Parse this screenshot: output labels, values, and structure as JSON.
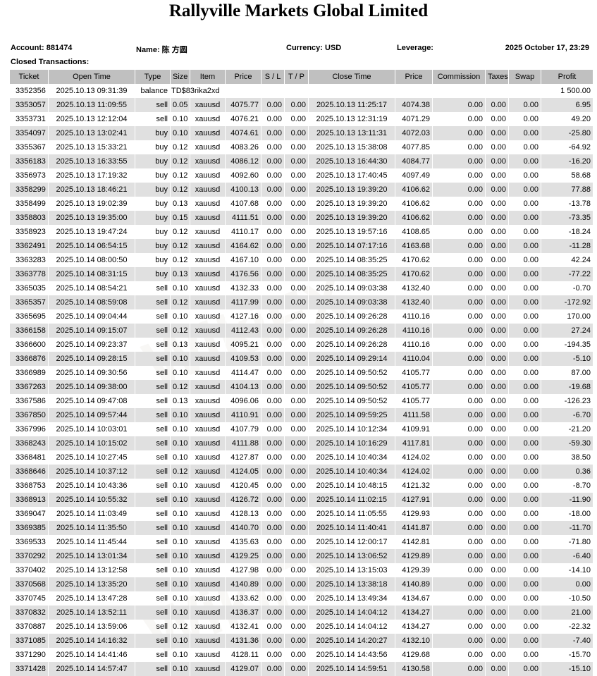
{
  "title": "Rallyville Markets Global Limited",
  "info": {
    "account": "Account: 881474",
    "name": "Name: 陈 方圆",
    "currency": "Currency: USD",
    "leverage": "Leverage:",
    "datetime": "2025 October 17, 23:29"
  },
  "section_label": "Closed Transactions:",
  "columns": [
    "Ticket",
    "Open Time",
    "Type",
    "Size",
    "Item",
    "Price",
    "S / L",
    "T / P",
    "Close Time",
    "Price",
    "Commission",
    "Taxes",
    "Swap",
    "Profit"
  ],
  "balance_row": {
    "ticket": "3352356",
    "open_time": "2025.10.13 09:31:39",
    "type": "balance",
    "comment": "TD$83rika2xd",
    "profit": "1 500.00"
  },
  "trades": [
    [
      "3353057",
      "2025.10.13 11:09:55",
      "sell",
      "0.05",
      "xauusd",
      "4075.77",
      "0.00",
      "0.00",
      "2025.10.13 11:25:17",
      "4074.38",
      "0.00",
      "0.00",
      "0.00",
      "6.95"
    ],
    [
      "3353731",
      "2025.10.13 12:12:04",
      "sell",
      "0.10",
      "xauusd",
      "4076.21",
      "0.00",
      "0.00",
      "2025.10.13 12:31:19",
      "4071.29",
      "0.00",
      "0.00",
      "0.00",
      "49.20"
    ],
    [
      "3354097",
      "2025.10.13 13:02:41",
      "buy",
      "0.10",
      "xauusd",
      "4074.61",
      "0.00",
      "0.00",
      "2025.10.13 13:11:31",
      "4072.03",
      "0.00",
      "0.00",
      "0.00",
      "-25.80"
    ],
    [
      "3355367",
      "2025.10.13 15:33:21",
      "buy",
      "0.12",
      "xauusd",
      "4083.26",
      "0.00",
      "0.00",
      "2025.10.13 15:38:08",
      "4077.85",
      "0.00",
      "0.00",
      "0.00",
      "-64.92"
    ],
    [
      "3356183",
      "2025.10.13 16:33:55",
      "buy",
      "0.12",
      "xauusd",
      "4086.12",
      "0.00",
      "0.00",
      "2025.10.13 16:44:30",
      "4084.77",
      "0.00",
      "0.00",
      "0.00",
      "-16.20"
    ],
    [
      "3356973",
      "2025.10.13 17:19:32",
      "buy",
      "0.12",
      "xauusd",
      "4092.60",
      "0.00",
      "0.00",
      "2025.10.13 17:40:45",
      "4097.49",
      "0.00",
      "0.00",
      "0.00",
      "58.68"
    ],
    [
      "3358299",
      "2025.10.13 18:46:21",
      "buy",
      "0.12",
      "xauusd",
      "4100.13",
      "0.00",
      "0.00",
      "2025.10.13 19:39:20",
      "4106.62",
      "0.00",
      "0.00",
      "0.00",
      "77.88"
    ],
    [
      "3358499",
      "2025.10.13 19:02:39",
      "buy",
      "0.13",
      "xauusd",
      "4107.68",
      "0.00",
      "0.00",
      "2025.10.13 19:39:20",
      "4106.62",
      "0.00",
      "0.00",
      "0.00",
      "-13.78"
    ],
    [
      "3358803",
      "2025.10.13 19:35:00",
      "buy",
      "0.15",
      "xauusd",
      "4111.51",
      "0.00",
      "0.00",
      "2025.10.13 19:39:20",
      "4106.62",
      "0.00",
      "0.00",
      "0.00",
      "-73.35"
    ],
    [
      "3358923",
      "2025.10.13 19:47:24",
      "buy",
      "0.12",
      "xauusd",
      "4110.17",
      "0.00",
      "0.00",
      "2025.10.13 19:57:16",
      "4108.65",
      "0.00",
      "0.00",
      "0.00",
      "-18.24"
    ],
    [
      "3362491",
      "2025.10.14 06:54:15",
      "buy",
      "0.12",
      "xauusd",
      "4164.62",
      "0.00",
      "0.00",
      "2025.10.14 07:17:16",
      "4163.68",
      "0.00",
      "0.00",
      "0.00",
      "-11.28"
    ],
    [
      "3363283",
      "2025.10.14 08:00:50",
      "buy",
      "0.12",
      "xauusd",
      "4167.10",
      "0.00",
      "0.00",
      "2025.10.14 08:35:25",
      "4170.62",
      "0.00",
      "0.00",
      "0.00",
      "42.24"
    ],
    [
      "3363778",
      "2025.10.14 08:31:15",
      "buy",
      "0.13",
      "xauusd",
      "4176.56",
      "0.00",
      "0.00",
      "2025.10.14 08:35:25",
      "4170.62",
      "0.00",
      "0.00",
      "0.00",
      "-77.22"
    ],
    [
      "3365035",
      "2025.10.14 08:54:21",
      "sell",
      "0.10",
      "xauusd",
      "4132.33",
      "0.00",
      "0.00",
      "2025.10.14 09:03:38",
      "4132.40",
      "0.00",
      "0.00",
      "0.00",
      "-0.70"
    ],
    [
      "3365357",
      "2025.10.14 08:59:08",
      "sell",
      "0.12",
      "xauusd",
      "4117.99",
      "0.00",
      "0.00",
      "2025.10.14 09:03:38",
      "4132.40",
      "0.00",
      "0.00",
      "0.00",
      "-172.92"
    ],
    [
      "3365695",
      "2025.10.14 09:04:44",
      "sell",
      "0.10",
      "xauusd",
      "4127.16",
      "0.00",
      "0.00",
      "2025.10.14 09:26:28",
      "4110.16",
      "0.00",
      "0.00",
      "0.00",
      "170.00"
    ],
    [
      "3366158",
      "2025.10.14 09:15:07",
      "sell",
      "0.12",
      "xauusd",
      "4112.43",
      "0.00",
      "0.00",
      "2025.10.14 09:26:28",
      "4110.16",
      "0.00",
      "0.00",
      "0.00",
      "27.24"
    ],
    [
      "3366600",
      "2025.10.14 09:23:37",
      "sell",
      "0.13",
      "xauusd",
      "4095.21",
      "0.00",
      "0.00",
      "2025.10.14 09:26:28",
      "4110.16",
      "0.00",
      "0.00",
      "0.00",
      "-194.35"
    ],
    [
      "3366876",
      "2025.10.14 09:28:15",
      "sell",
      "0.10",
      "xauusd",
      "4109.53",
      "0.00",
      "0.00",
      "2025.10.14 09:29:14",
      "4110.04",
      "0.00",
      "0.00",
      "0.00",
      "-5.10"
    ],
    [
      "3366989",
      "2025.10.14 09:30:56",
      "sell",
      "0.10",
      "xauusd",
      "4114.47",
      "0.00",
      "0.00",
      "2025.10.14 09:50:52",
      "4105.77",
      "0.00",
      "0.00",
      "0.00",
      "87.00"
    ],
    [
      "3367263",
      "2025.10.14 09:38:00",
      "sell",
      "0.12",
      "xauusd",
      "4104.13",
      "0.00",
      "0.00",
      "2025.10.14 09:50:52",
      "4105.77",
      "0.00",
      "0.00",
      "0.00",
      "-19.68"
    ],
    [
      "3367586",
      "2025.10.14 09:47:08",
      "sell",
      "0.13",
      "xauusd",
      "4096.06",
      "0.00",
      "0.00",
      "2025.10.14 09:50:52",
      "4105.77",
      "0.00",
      "0.00",
      "0.00",
      "-126.23"
    ],
    [
      "3367850",
      "2025.10.14 09:57:44",
      "sell",
      "0.10",
      "xauusd",
      "4110.91",
      "0.00",
      "0.00",
      "2025.10.14 09:59:25",
      "4111.58",
      "0.00",
      "0.00",
      "0.00",
      "-6.70"
    ],
    [
      "3367996",
      "2025.10.14 10:03:01",
      "sell",
      "0.10",
      "xauusd",
      "4107.79",
      "0.00",
      "0.00",
      "2025.10.14 10:12:34",
      "4109.91",
      "0.00",
      "0.00",
      "0.00",
      "-21.20"
    ],
    [
      "3368243",
      "2025.10.14 10:15:02",
      "sell",
      "0.10",
      "xauusd",
      "4111.88",
      "0.00",
      "0.00",
      "2025.10.14 10:16:29",
      "4117.81",
      "0.00",
      "0.00",
      "0.00",
      "-59.30"
    ],
    [
      "3368481",
      "2025.10.14 10:27:45",
      "sell",
      "0.10",
      "xauusd",
      "4127.87",
      "0.00",
      "0.00",
      "2025.10.14 10:40:34",
      "4124.02",
      "0.00",
      "0.00",
      "0.00",
      "38.50"
    ],
    [
      "3368646",
      "2025.10.14 10:37:12",
      "sell",
      "0.12",
      "xauusd",
      "4124.05",
      "0.00",
      "0.00",
      "2025.10.14 10:40:34",
      "4124.02",
      "0.00",
      "0.00",
      "0.00",
      "0.36"
    ],
    [
      "3368753",
      "2025.10.14 10:43:36",
      "sell",
      "0.10",
      "xauusd",
      "4120.45",
      "0.00",
      "0.00",
      "2025.10.14 10:48:15",
      "4121.32",
      "0.00",
      "0.00",
      "0.00",
      "-8.70"
    ],
    [
      "3368913",
      "2025.10.14 10:55:32",
      "sell",
      "0.10",
      "xauusd",
      "4126.72",
      "0.00",
      "0.00",
      "2025.10.14 11:02:15",
      "4127.91",
      "0.00",
      "0.00",
      "0.00",
      "-11.90"
    ],
    [
      "3369047",
      "2025.10.14 11:03:49",
      "sell",
      "0.10",
      "xauusd",
      "4128.13",
      "0.00",
      "0.00",
      "2025.10.14 11:05:55",
      "4129.93",
      "0.00",
      "0.00",
      "0.00",
      "-18.00"
    ],
    [
      "3369385",
      "2025.10.14 11:35:50",
      "sell",
      "0.10",
      "xauusd",
      "4140.70",
      "0.00",
      "0.00",
      "2025.10.14 11:40:41",
      "4141.87",
      "0.00",
      "0.00",
      "0.00",
      "-11.70"
    ],
    [
      "3369533",
      "2025.10.14 11:45:44",
      "sell",
      "0.10",
      "xauusd",
      "4135.63",
      "0.00",
      "0.00",
      "2025.10.14 12:00:17",
      "4142.81",
      "0.00",
      "0.00",
      "0.00",
      "-71.80"
    ],
    [
      "3370292",
      "2025.10.14 13:01:34",
      "sell",
      "0.10",
      "xauusd",
      "4129.25",
      "0.00",
      "0.00",
      "2025.10.14 13:06:52",
      "4129.89",
      "0.00",
      "0.00",
      "0.00",
      "-6.40"
    ],
    [
      "3370402",
      "2025.10.14 13:12:58",
      "sell",
      "0.10",
      "xauusd",
      "4127.98",
      "0.00",
      "0.00",
      "2025.10.14 13:15:03",
      "4129.39",
      "0.00",
      "0.00",
      "0.00",
      "-14.10"
    ],
    [
      "3370568",
      "2025.10.14 13:35:20",
      "sell",
      "0.10",
      "xauusd",
      "4140.89",
      "0.00",
      "0.00",
      "2025.10.14 13:38:18",
      "4140.89",
      "0.00",
      "0.00",
      "0.00",
      "0.00"
    ],
    [
      "3370745",
      "2025.10.14 13:47:28",
      "sell",
      "0.10",
      "xauusd",
      "4133.62",
      "0.00",
      "0.00",
      "2025.10.14 13:49:34",
      "4134.67",
      "0.00",
      "0.00",
      "0.00",
      "-10.50"
    ],
    [
      "3370832",
      "2025.10.14 13:52:11",
      "sell",
      "0.10",
      "xauusd",
      "4136.37",
      "0.00",
      "0.00",
      "2025.10.14 14:04:12",
      "4134.27",
      "0.00",
      "0.00",
      "0.00",
      "21.00"
    ],
    [
      "3370887",
      "2025.10.14 13:59:06",
      "sell",
      "0.12",
      "xauusd",
      "4132.41",
      "0.00",
      "0.00",
      "2025.10.14 14:04:12",
      "4134.27",
      "0.00",
      "0.00",
      "0.00",
      "-22.32"
    ],
    [
      "3371085",
      "2025.10.14 14:16:32",
      "sell",
      "0.10",
      "xauusd",
      "4131.36",
      "0.00",
      "0.00",
      "2025.10.14 14:20:27",
      "4132.10",
      "0.00",
      "0.00",
      "0.00",
      "-7.40"
    ],
    [
      "3371290",
      "2025.10.14 14:41:46",
      "sell",
      "0.10",
      "xauusd",
      "4128.11",
      "0.00",
      "0.00",
      "2025.10.14 14:43:56",
      "4129.68",
      "0.00",
      "0.00",
      "0.00",
      "-15.70"
    ],
    [
      "3371428",
      "2025.10.14 14:57:47",
      "sell",
      "0.10",
      "xauusd",
      "4129.07",
      "0.00",
      "0.00",
      "2025.10.14 14:59:51",
      "4130.58",
      "0.00",
      "0.00",
      "0.00",
      "-15.10"
    ]
  ],
  "watermark": "WikiFX",
  "colors": {
    "header_bg": "#c0c0c0",
    "alt_row_bg": "#e0e0e0"
  }
}
